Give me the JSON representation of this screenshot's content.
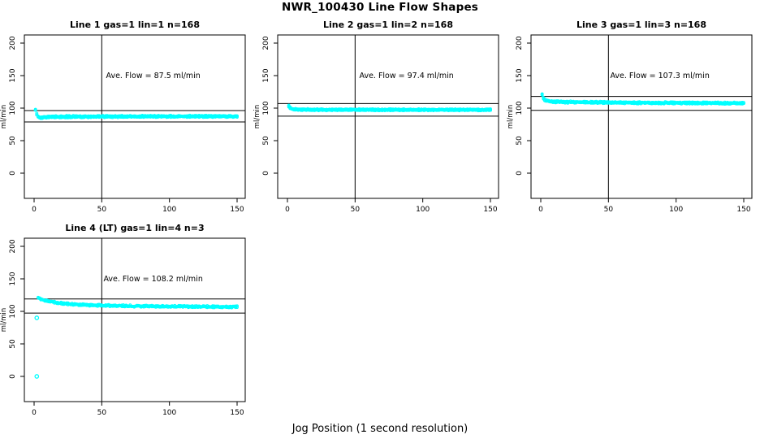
{
  "page": {
    "title": "NWR_100430  Line Flow Shapes",
    "xlabel": "Jog Position (1 second resolution)"
  },
  "chart_data": [
    {
      "type": "scatter",
      "title": "Line 1 gas=1 lin=1 n=168",
      "annotation": "Ave. Flow =  87.5  ml/min",
      "ave_flow": 87.5,
      "ylabel": "ml/min",
      "point_color": "#00ffff",
      "line_color": "#000000",
      "x_ticks": [
        0,
        50,
        100,
        150
      ],
      "y_ticks": [
        0,
        50,
        100,
        150,
        200
      ],
      "xlim": [
        -7,
        156
      ],
      "ylim": [
        -39,
        213
      ],
      "v_line": 50,
      "h_lines": [
        96.3,
        78.8
      ],
      "runs": 4,
      "noise": 0.9,
      "x_start": 1,
      "x_end": 150,
      "profile": [
        [
          1,
          97
        ],
        [
          2,
          90.5
        ],
        [
          3,
          87
        ],
        [
          4,
          85.5
        ],
        [
          6,
          85.8
        ],
        [
          10,
          86.3
        ],
        [
          20,
          86.8
        ],
        [
          40,
          87
        ],
        [
          70,
          87.2
        ],
        [
          100,
          87.3
        ],
        [
          150,
          87.3
        ]
      ],
      "outliers": []
    },
    {
      "type": "scatter",
      "title": "Line 2 gas=1 lin=2 n=168",
      "annotation": "Ave. Flow =  97.4  ml/min",
      "ave_flow": 97.4,
      "ylabel": "ml/min",
      "point_color": "#00ffff",
      "line_color": "#000000",
      "x_ticks": [
        0,
        50,
        100,
        150
      ],
      "y_ticks": [
        0,
        50,
        100,
        150,
        200
      ],
      "xlim": [
        -7,
        156
      ],
      "ylim": [
        -39,
        213
      ],
      "v_line": 50,
      "h_lines": [
        107.1,
        87.7
      ],
      "runs": 4,
      "noise": 0.7,
      "x_start": 1,
      "x_end": 150,
      "profile": [
        [
          1,
          103
        ],
        [
          2,
          100.5
        ],
        [
          3,
          99
        ],
        [
          5,
          98.2
        ],
        [
          10,
          97.8
        ],
        [
          20,
          97.6
        ],
        [
          50,
          97.5
        ],
        [
          100,
          97.5
        ],
        [
          150,
          97.3
        ]
      ],
      "outliers": []
    },
    {
      "type": "scatter",
      "title": "Line 3 gas=1 lin=3 n=168",
      "annotation": "Ave. Flow =  107.3  ml/min",
      "ave_flow": 107.3,
      "ylabel": "ml/min",
      "point_color": "#00ffff",
      "line_color": "#000000",
      "x_ticks": [
        0,
        50,
        100,
        150
      ],
      "y_ticks": [
        0,
        50,
        100,
        150,
        200
      ],
      "xlim": [
        -7,
        156
      ],
      "ylim": [
        -39,
        213
      ],
      "v_line": 50,
      "h_lines": [
        118.0,
        96.6
      ],
      "runs": 4,
      "noise": 0.9,
      "x_start": 1,
      "x_end": 150,
      "profile": [
        [
          1,
          121
        ],
        [
          2,
          115.5
        ],
        [
          3,
          112.5
        ],
        [
          5,
          111
        ],
        [
          10,
          110
        ],
        [
          20,
          109.3
        ],
        [
          40,
          108.8
        ],
        [
          70,
          108.3
        ],
        [
          100,
          108
        ],
        [
          150,
          107.6
        ]
      ],
      "outliers": []
    },
    {
      "type": "scatter",
      "title": "Line 4 (LT) gas=1 lin=4 n=3",
      "annotation": "Ave. Flow =  108.2  ml/min",
      "ave_flow": 108.2,
      "ylabel": "ml/min",
      "point_color": "#00ffff",
      "line_color": "#000000",
      "x_ticks": [
        0,
        50,
        100,
        150
      ],
      "y_ticks": [
        0,
        50,
        100,
        150,
        200
      ],
      "xlim": [
        -7,
        156
      ],
      "ylim": [
        -39,
        213
      ],
      "v_line": 50,
      "h_lines": [
        119.0,
        97.4
      ],
      "runs": 3,
      "noise": 1.1,
      "x_start": 3,
      "x_end": 150,
      "profile": [
        [
          3,
          121
        ],
        [
          5,
          119
        ],
        [
          8,
          117
        ],
        [
          12,
          115
        ],
        [
          18,
          113
        ],
        [
          25,
          111.5
        ],
        [
          35,
          110
        ],
        [
          50,
          109
        ],
        [
          70,
          108.2
        ],
        [
          100,
          107.6
        ],
        [
          150,
          107
        ]
      ],
      "outliers": [
        [
          2,
          90
        ],
        [
          2,
          0
        ]
      ]
    }
  ]
}
